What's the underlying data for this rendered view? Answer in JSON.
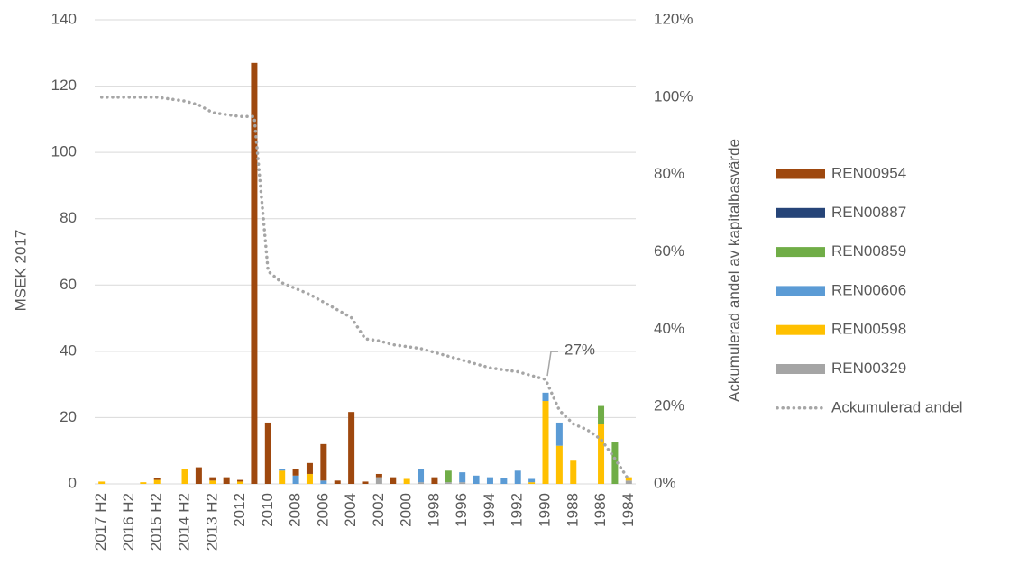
{
  "chart_data": {
    "type": "bar",
    "stacked": true,
    "categories": [
      "2017 H2",
      null,
      "2016 H2",
      null,
      "2015 H2",
      null,
      "2014 H2",
      null,
      "2013 H2",
      null,
      "2012",
      null,
      "2010",
      null,
      "2008",
      null,
      "2006",
      null,
      "2004",
      null,
      "2002",
      null,
      "2000",
      null,
      "1998",
      null,
      "1996",
      null,
      "1994",
      null,
      "1992",
      null,
      "1990",
      null,
      "1988",
      null,
      "1986",
      null,
      "1984"
    ],
    "ylabel": "MSEK 2017",
    "y2label": "Ackumulerad andel av kapitalbasvärde",
    "ylim": [
      0,
      140
    ],
    "yticks": [
      0,
      20,
      40,
      60,
      80,
      100,
      120,
      140
    ],
    "y2lim": [
      0,
      120
    ],
    "y2ticks": [
      {
        "value": 0,
        "label": "0%"
      },
      {
        "value": 20,
        "label": "20%"
      },
      {
        "value": 40,
        "label": "40%"
      },
      {
        "value": 60,
        "label": "60%"
      },
      {
        "value": 80,
        "label": "80%"
      },
      {
        "value": 100,
        "label": "100%"
      },
      {
        "value": 120,
        "label": "120%"
      }
    ],
    "grid": true,
    "legend": "right",
    "series": [
      {
        "name": "REN00954",
        "color": "#9e480e",
        "values": [
          null,
          null,
          null,
          null,
          0.7,
          null,
          null,
          5,
          1,
          2,
          0.5,
          127,
          18.5,
          null,
          2,
          3.3,
          11,
          1,
          21.7,
          0.7,
          1,
          2,
          null,
          null,
          2,
          null,
          null,
          null,
          null,
          null,
          null,
          null,
          null,
          null,
          null,
          null,
          null,
          null,
          null
        ]
      },
      {
        "name": "REN00887",
        "color": "#264478",
        "values": [
          null,
          null,
          null,
          null,
          null,
          null,
          null,
          null,
          null,
          null,
          null,
          null,
          null,
          null,
          null,
          null,
          null,
          null,
          null,
          null,
          null,
          null,
          null,
          null,
          null,
          null,
          null,
          null,
          null,
          null,
          null,
          null,
          null,
          null,
          null,
          null,
          null,
          null,
          null
        ]
      },
      {
        "name": "REN00859",
        "color": "#70ad47",
        "values": [
          null,
          null,
          null,
          null,
          null,
          null,
          null,
          null,
          null,
          null,
          null,
          null,
          null,
          null,
          null,
          null,
          null,
          null,
          null,
          null,
          null,
          null,
          null,
          null,
          null,
          3.5,
          null,
          null,
          null,
          null,
          null,
          null,
          null,
          null,
          null,
          null,
          5.5,
          12.5,
          null
        ]
      },
      {
        "name": "REN00606",
        "color": "#5b9bd5",
        "values": [
          null,
          null,
          null,
          null,
          null,
          null,
          null,
          null,
          null,
          null,
          null,
          null,
          null,
          0.5,
          2.5,
          null,
          1,
          null,
          null,
          null,
          null,
          null,
          null,
          4,
          null,
          null,
          3,
          2.5,
          2,
          1.8,
          4,
          1,
          2.5,
          7,
          null,
          null,
          null,
          null,
          null
        ]
      },
      {
        "name": "REN00598",
        "color": "#ffc000",
        "values": [
          0.7,
          null,
          null,
          0.5,
          1.2,
          null,
          4.5,
          null,
          1,
          null,
          0.7,
          null,
          null,
          4,
          null,
          3,
          null,
          null,
          null,
          null,
          null,
          null,
          1.5,
          null,
          null,
          null,
          null,
          null,
          null,
          null,
          null,
          0.5,
          25,
          11.5,
          7,
          null,
          18,
          null,
          1
        ]
      },
      {
        "name": "REN00329",
        "color": "#a5a5a5",
        "values": [
          null,
          null,
          null,
          null,
          null,
          null,
          null,
          null,
          null,
          null,
          null,
          null,
          null,
          null,
          null,
          null,
          null,
          null,
          null,
          null,
          2,
          null,
          null,
          0.5,
          null,
          0.5,
          0.5,
          null,
          null,
          null,
          null,
          null,
          null,
          null,
          null,
          null,
          null,
          null,
          1
        ]
      },
      {
        "name": "Ackumulerad andel",
        "color": "#a6a6a6",
        "type": "line",
        "style": "dotted",
        "axis": "y2",
        "values": [
          100,
          100,
          100,
          100,
          100,
          99.5,
          99,
          98,
          96,
          95.5,
          95,
          95,
          55,
          52,
          50.5,
          49,
          47,
          45,
          43,
          37.5,
          37,
          36,
          35.5,
          35,
          34,
          33,
          32,
          31,
          30,
          29.5,
          29,
          28,
          27,
          19,
          15.5,
          14,
          11.5,
          6.5,
          1
        ],
        "value_labels": [
          null,
          null,
          null,
          null,
          null,
          null,
          null,
          null,
          null,
          null,
          null,
          null,
          null,
          null,
          null,
          null,
          null,
          null,
          null,
          null,
          null,
          null,
          null,
          null,
          null,
          null,
          null,
          null,
          null,
          null,
          null,
          null,
          "27%",
          null,
          null,
          null,
          null,
          null,
          null
        ]
      }
    ]
  }
}
